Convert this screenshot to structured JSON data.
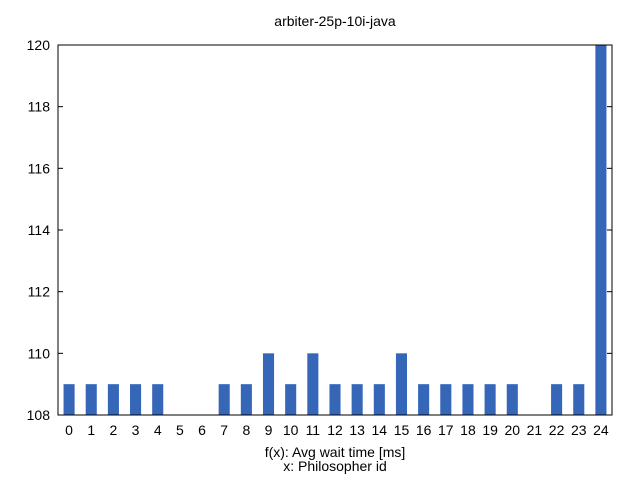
{
  "chart_data": {
    "type": "bar",
    "title": "arbiter-25p-10i-java",
    "xlabel": "f(x): Avg wait time [ms]",
    "xlabel2": "x: Philosopher id",
    "ylabel": "",
    "categories": [
      "0",
      "1",
      "2",
      "3",
      "4",
      "5",
      "6",
      "7",
      "8",
      "9",
      "10",
      "11",
      "12",
      "13",
      "14",
      "15",
      "16",
      "17",
      "18",
      "19",
      "20",
      "21",
      "22",
      "23",
      "24"
    ],
    "values": [
      109,
      109,
      109,
      109,
      109,
      108,
      108,
      109,
      109,
      110,
      109,
      110,
      109,
      109,
      109,
      110,
      109,
      109,
      109,
      109,
      109,
      108,
      109,
      109,
      120
    ],
    "ylim": [
      108,
      120
    ],
    "yticks": [
      "108",
      "110",
      "112",
      "114",
      "116",
      "118",
      "120"
    ],
    "grid": false,
    "legend": "none",
    "bar_color": "#3566b8"
  }
}
